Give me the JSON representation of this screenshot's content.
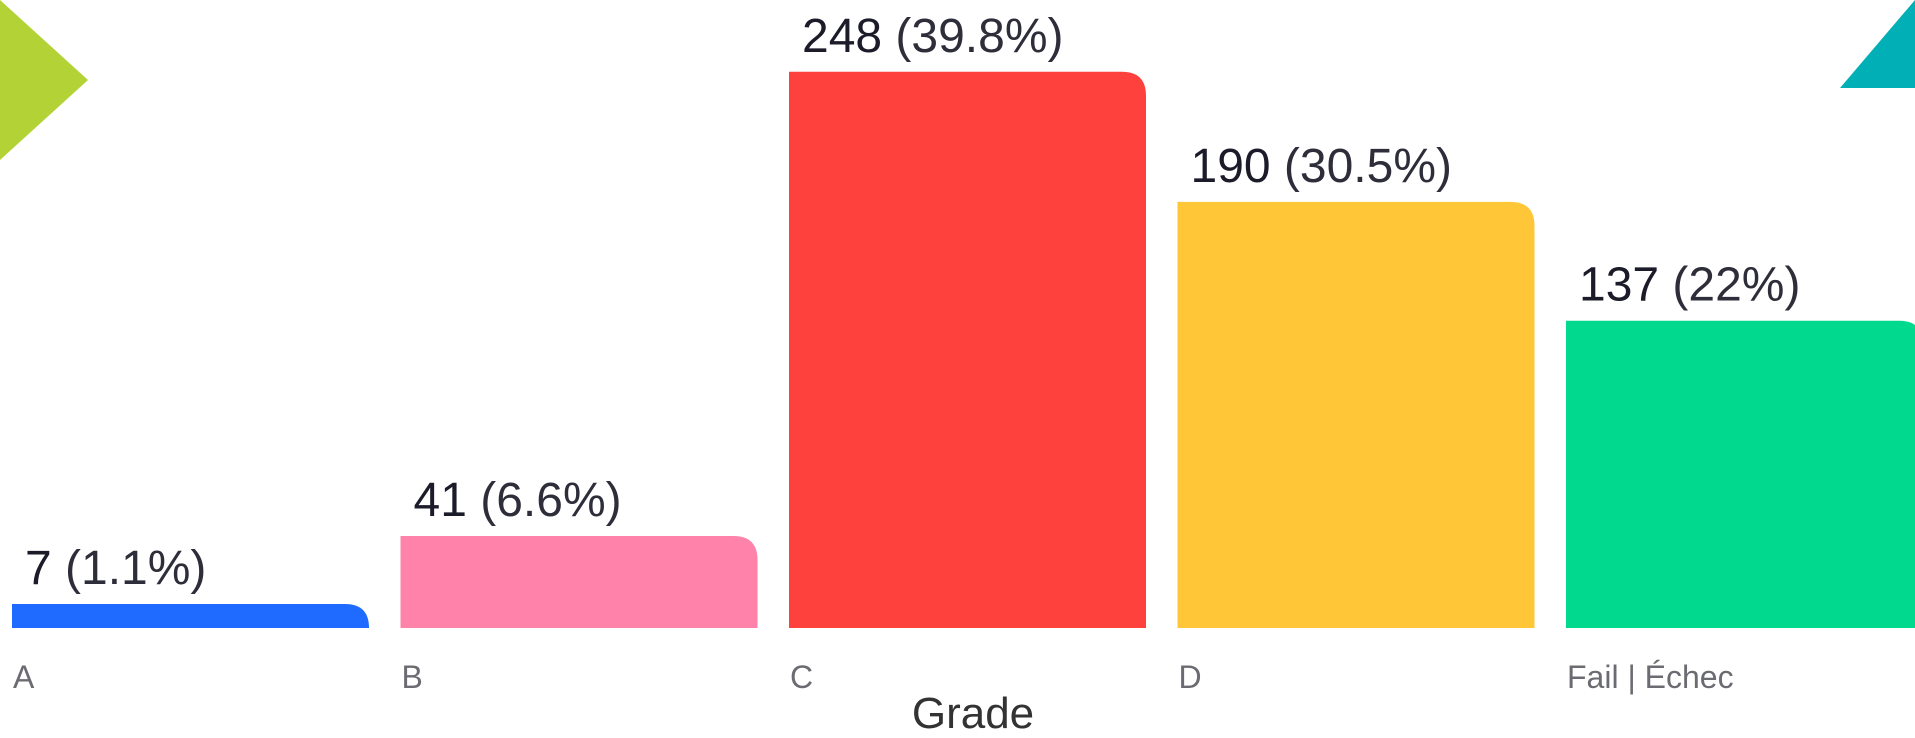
{
  "chart_data": {
    "type": "bar",
    "xlabel": "Grade",
    "ylabel": "",
    "title": "",
    "categories": [
      "A",
      "B",
      "C",
      "D",
      "Fail | Échec"
    ],
    "values": [
      7,
      41,
      248,
      190,
      137
    ],
    "percent_labels": [
      "(1.1%)",
      "(6.6%)",
      "(39.8%)",
      "(30.5%)",
      "(22%)"
    ],
    "colors": [
      "#1f6bff",
      "#ff82aa",
      "#ff413d",
      "#ffc637",
      "#00d98e"
    ],
    "ylim": [
      0,
      280
    ],
    "grid": false,
    "legend": "none"
  },
  "decor": {
    "left_triangle_color": "#b2d235",
    "right_triangle_color": "#00b0b6"
  }
}
